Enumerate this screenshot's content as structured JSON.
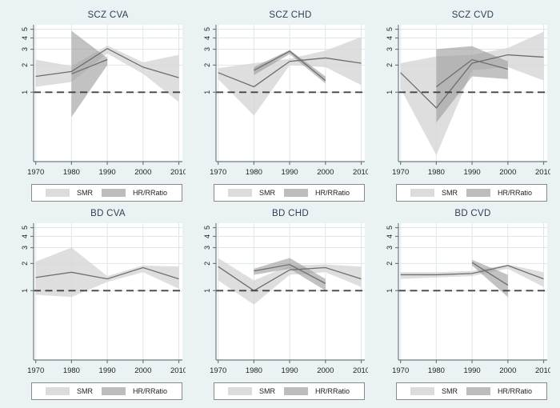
{
  "colors": {
    "background": "#eaf2f3",
    "plot_bg": "#ffffff",
    "grid": "#dde7ea",
    "axis": "#6e7a80",
    "tick_text": "#222222",
    "title_text": "#2e3f55",
    "smr_band": "#d6d6d6",
    "hr_band": "#999999",
    "series_line": "#6e6e6e",
    "ref_line": "#444444"
  },
  "legend": {
    "items": [
      {
        "label": "SMR",
        "color": "#dcdcdc"
      },
      {
        "label": "HR/RRatio",
        "color": "#bdbdbd"
      }
    ]
  },
  "axes": {
    "yscale": "log",
    "ylim": [
      0.17,
      5.6
    ],
    "xlim": [
      1969.4,
      2011
    ],
    "yticks": [
      1,
      2,
      3,
      4,
      5
    ],
    "xticks": [
      1970,
      1980,
      1990,
      2000,
      2010
    ],
    "ref_line": 1,
    "grid": "on",
    "legend_position": "below"
  },
  "chart_data": [
    {
      "title": "SCZ CVA",
      "type": "line",
      "series": [
        {
          "name": "SMR",
          "x": [
            1970,
            1980,
            1990,
            2000,
            2010
          ],
          "y": [
            1.5,
            1.7,
            3.05,
            1.9,
            1.45
          ],
          "lower": [
            1.15,
            1.3,
            2.7,
            1.6,
            0.78
          ],
          "upper": [
            2.3,
            1.95,
            3.3,
            2.15,
            2.6
          ]
        },
        {
          "name": "HR/RRatio",
          "x": [
            1980,
            1990
          ],
          "y": [
            1.6,
            2.3
          ],
          "lower": [
            0.53,
            2.0
          ],
          "upper": [
            4.8,
            2.4
          ]
        }
      ]
    },
    {
      "title": "SCZ CHD",
      "type": "line",
      "series": [
        {
          "name": "SMR",
          "x": [
            1970,
            1980,
            1990,
            2000,
            2010
          ],
          "y": [
            1.65,
            1.15,
            2.2,
            2.4,
            2.1
          ],
          "lower": [
            1.4,
            0.55,
            2.0,
            1.9,
            1.2
          ],
          "upper": [
            1.85,
            2.1,
            2.35,
            2.9,
            4.1
          ]
        },
        {
          "name": "HR/RRatio",
          "x": [
            1980,
            1990,
            2000
          ],
          "y": [
            1.75,
            2.85,
            1.35
          ],
          "lower": [
            1.55,
            2.65,
            1.25
          ],
          "upper": [
            1.9,
            2.95,
            1.5
          ]
        }
      ]
    },
    {
      "title": "SCZ CVD",
      "type": "line",
      "series": [
        {
          "name": "SMR",
          "x": [
            1970,
            1980,
            1990,
            2000,
            2010
          ],
          "y": [
            1.65,
            0.67,
            2.1,
            2.6,
            2.45
          ],
          "lower": [
            1.1,
            0.2,
            1.75,
            1.9,
            1.35
          ],
          "upper": [
            2.1,
            2.5,
            2.6,
            3.1,
            4.7
          ]
        },
        {
          "name": "HR/RRatio",
          "x": [
            1980,
            1990,
            2000
          ],
          "y": [
            1.15,
            2.3,
            1.8
          ],
          "lower": [
            0.46,
            1.5,
            1.4
          ],
          "upper": [
            3.0,
            3.25,
            2.2
          ]
        }
      ]
    },
    {
      "title": "BD CVA",
      "type": "line",
      "series": [
        {
          "name": "SMR",
          "x": [
            1970,
            1980,
            1990,
            2000,
            2010
          ],
          "y": [
            1.4,
            1.6,
            1.35,
            1.8,
            1.35
          ],
          "lower": [
            0.9,
            0.85,
            1.25,
            1.6,
            1.05
          ],
          "upper": [
            2.1,
            3.0,
            1.45,
            1.9,
            1.85
          ]
        }
      ]
    },
    {
      "title": "BD CHD",
      "type": "line",
      "series": [
        {
          "name": "SMR",
          "x": [
            1970,
            1980,
            1990,
            2000,
            2010
          ],
          "y": [
            1.85,
            1.0,
            1.7,
            1.8,
            1.35
          ],
          "lower": [
            1.3,
            0.7,
            1.5,
            1.6,
            1.1
          ],
          "upper": [
            2.3,
            1.3,
            1.9,
            1.95,
            1.85
          ]
        },
        {
          "name": "HR/RRatio",
          "x": [
            1980,
            1990,
            2000
          ],
          "y": [
            1.65,
            1.95,
            1.2
          ],
          "lower": [
            1.5,
            1.75,
            1.0
          ],
          "upper": [
            1.75,
            2.3,
            1.35
          ]
        }
      ]
    },
    {
      "title": "BD CVD",
      "type": "line",
      "series": [
        {
          "name": "SMR",
          "x": [
            1970,
            1980,
            1990,
            2000,
            2010
          ],
          "y": [
            1.5,
            1.5,
            1.55,
            1.9,
            1.35
          ],
          "lower": [
            1.35,
            1.4,
            1.45,
            1.75,
            1.1
          ],
          "upper": [
            1.6,
            1.6,
            1.65,
            1.95,
            1.6
          ]
        },
        {
          "name": "HR/RRatio",
          "x": [
            1990,
            2000
          ],
          "y": [
            2.05,
            1.15
          ],
          "lower": [
            1.9,
            0.85
          ],
          "upper": [
            2.2,
            1.5
          ]
        }
      ]
    }
  ]
}
